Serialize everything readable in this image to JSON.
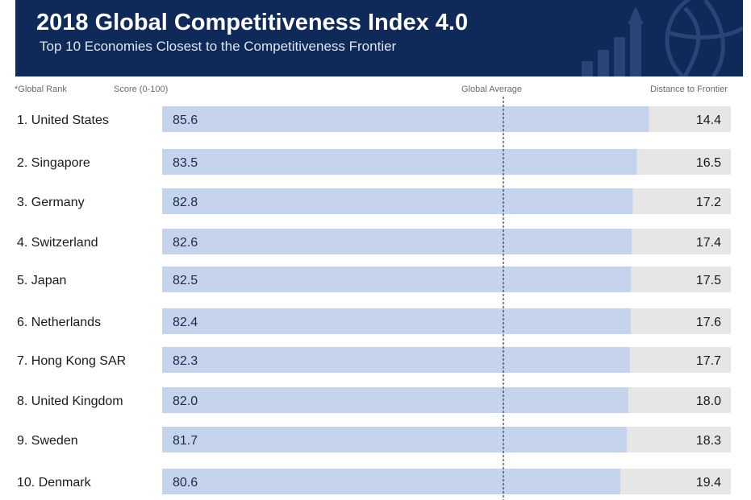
{
  "header": {
    "title": "2018 Global Competitiveness Index 4.0",
    "subtitle": "Top 10 Economies Closest to the Competitiveness Frontier"
  },
  "labels": {
    "rank_note": "*Global Rank",
    "score_header": "Score (0-100)",
    "average_header": "Global Average",
    "distance_header": "Distance to Frontier"
  },
  "icons": [
    "globe-icon",
    "growth-arrow-icon"
  ],
  "colors": {
    "header_bg": "#0f2a59",
    "score_bar": "#c6d3ec",
    "distance_bar": "#e6e6e6",
    "average_line": "#2b3a5c"
  },
  "chart_data": {
    "type": "bar",
    "orientation": "horizontal",
    "stacked": true,
    "xlim": [
      0,
      100
    ],
    "global_average": 60,
    "categories": [
      "1. United States",
      "2. Singapore",
      "3. Germany",
      "4. Switzerland",
      "5. Japan",
      "6. Netherlands",
      "7. Hong Kong SAR",
      "8. United Kingdom",
      "9. Sweden",
      "10. Denmark"
    ],
    "series": [
      {
        "name": "Score (0-100)",
        "values": [
          85.6,
          83.5,
          82.8,
          82.6,
          82.5,
          82.4,
          82.3,
          82.0,
          81.7,
          80.6
        ]
      },
      {
        "name": "Distance to Frontier",
        "values": [
          14.4,
          16.5,
          17.2,
          17.4,
          17.5,
          17.6,
          17.7,
          18.0,
          18.3,
          19.4
        ]
      }
    ]
  }
}
